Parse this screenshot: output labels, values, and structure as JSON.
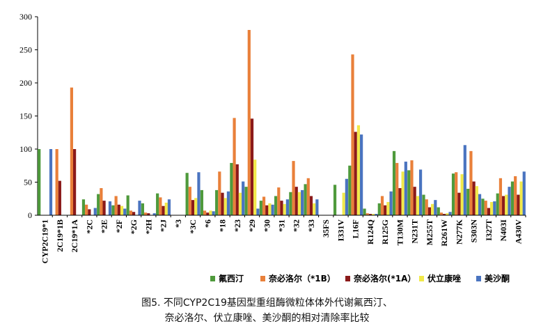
{
  "chart_data": {
    "type": "bar",
    "title": "",
    "xlabel": "",
    "ylabel": "",
    "ylim": [
      0,
      300
    ],
    "yticks": [
      0,
      50,
      100,
      150,
      200,
      250,
      300
    ],
    "grid": false,
    "legend_position": "bottom",
    "categories": [
      "CYP2C19*1",
      "2C19*1B",
      "2C19*1A",
      "*2C",
      "*2E",
      "*2F",
      "*2G",
      "*2H",
      "*2J",
      "*3",
      "*3C",
      "*6",
      "*18",
      "*23",
      "*29",
      "*30",
      "*31",
      "*32",
      "*33",
      "35FS",
      "I331V",
      "L16F",
      "R124Q",
      "R125G",
      "T130M",
      "N231T",
      "M255T",
      "R261W",
      "N277K",
      "S303N",
      "I327T",
      "N403I",
      "A430V"
    ],
    "series": [
      {
        "name": "氟西汀",
        "color": "#4f9a3c",
        "values": [
          100,
          0,
          0,
          24,
          32,
          15,
          30,
          18,
          33,
          0,
          64,
          38,
          38,
          79,
          43,
          22,
          29,
          35,
          47,
          0,
          46,
          75,
          10,
          18,
          97,
          68,
          31,
          12,
          63,
          40,
          25,
          33,
          51
        ]
      },
      {
        "name": "奈必洛尔（*1B）",
        "color": "#e9803a",
        "values": [
          0,
          100,
          193,
          16,
          41,
          29,
          7,
          4,
          27,
          0,
          43,
          7,
          66,
          147,
          280,
          28,
          42,
          82,
          56,
          0,
          0,
          243,
          3,
          29,
          79,
          83,
          24,
          4,
          65,
          97,
          22,
          56,
          59
        ]
      },
      {
        "name": "奈必洛尔(*1A）",
        "color": "#8b1a1a",
        "values": [
          0,
          52,
          100,
          9,
          22,
          16,
          5,
          3,
          14,
          0,
          23,
          4,
          34,
          77,
          146,
          15,
          22,
          43,
          29,
          0,
          0,
          126,
          2,
          15,
          41,
          43,
          12,
          2,
          34,
          51,
          11,
          29,
          31
        ]
      },
      {
        "name": "伏立康唑",
        "color": "#f1e94a",
        "values": [
          0,
          0,
          0,
          0,
          0,
          14,
          0,
          0,
          19,
          0,
          26,
          7,
          26,
          34,
          84,
          18,
          17,
          35,
          18,
          0,
          34,
          136,
          2,
          20,
          66,
          29,
          17,
          3,
          62,
          44,
          20,
          31,
          51
        ]
      },
      {
        "name": "美沙酮",
        "color": "#4a74c0",
        "values": [
          100,
          0,
          0,
          11,
          21,
          10,
          22,
          3,
          24,
          0,
          65,
          6,
          36,
          51,
          10,
          16,
          24,
          38,
          24,
          0,
          55,
          122,
          2,
          36,
          81,
          69,
          23,
          5,
          106,
          32,
          21,
          43,
          66
        ]
      }
    ]
  },
  "caption": {
    "line1": "图5. 不同CYP2C19基因型重组酶微粒体体外代谢氟西汀、",
    "line2": "奈必洛尔、伏立康唑、美沙酮的相对清除率比较"
  }
}
